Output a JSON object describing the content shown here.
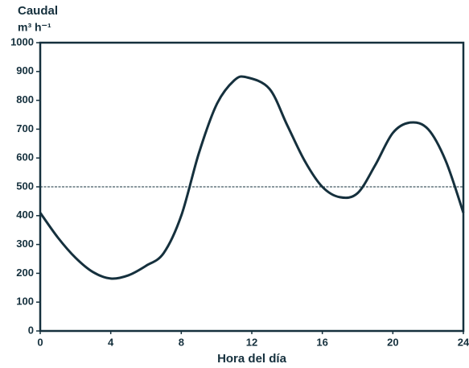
{
  "chart_data": {
    "type": "line",
    "ylabel": "Caudal",
    "yunit": "m³ h⁻¹",
    "xlabel": "Hora del día",
    "x": [
      0,
      1,
      2,
      3,
      4,
      5,
      6,
      7,
      8,
      9,
      10,
      11,
      11.7,
      13,
      14,
      15,
      16,
      17,
      18,
      19,
      20,
      21,
      22,
      23,
      24
    ],
    "series": [
      {
        "color": "#15303d",
        "values": [
          410,
          324,
          254,
          204,
          182,
          193,
          226,
          270,
          400,
          617,
          785,
          869,
          880,
          840,
          715,
          590,
          500,
          464,
          478,
          575,
          687,
          723,
          700,
          590,
          410
        ]
      }
    ],
    "reference_line": 500,
    "xlim": [
      0,
      24
    ],
    "xticks": [
      0,
      4,
      8,
      12,
      16,
      20,
      24
    ],
    "ylim": [
      0,
      1000
    ],
    "yticks": [
      0,
      100,
      200,
      300,
      400,
      500,
      600,
      700,
      800,
      900,
      1000
    ]
  }
}
